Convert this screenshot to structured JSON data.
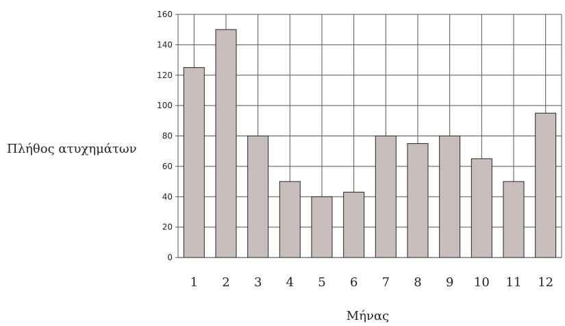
{
  "chart_data": {
    "type": "bar",
    "title": "",
    "xlabel": "Μήνας",
    "ylabel": "Πλήθος ατυχημάτων",
    "categories": [
      "1",
      "2",
      "3",
      "4",
      "5",
      "6",
      "7",
      "8",
      "9",
      "10",
      "11",
      "12"
    ],
    "values": [
      125,
      150,
      80,
      50,
      40,
      43,
      80,
      75,
      80,
      65,
      50,
      95
    ],
    "ylim": [
      0,
      160
    ],
    "yticks": [
      0,
      20,
      40,
      60,
      80,
      100,
      120,
      140,
      160
    ],
    "grid": true,
    "bar_color": "#c8bfbc",
    "bar_edge_color": "#222222",
    "grid_color": "#555555"
  }
}
